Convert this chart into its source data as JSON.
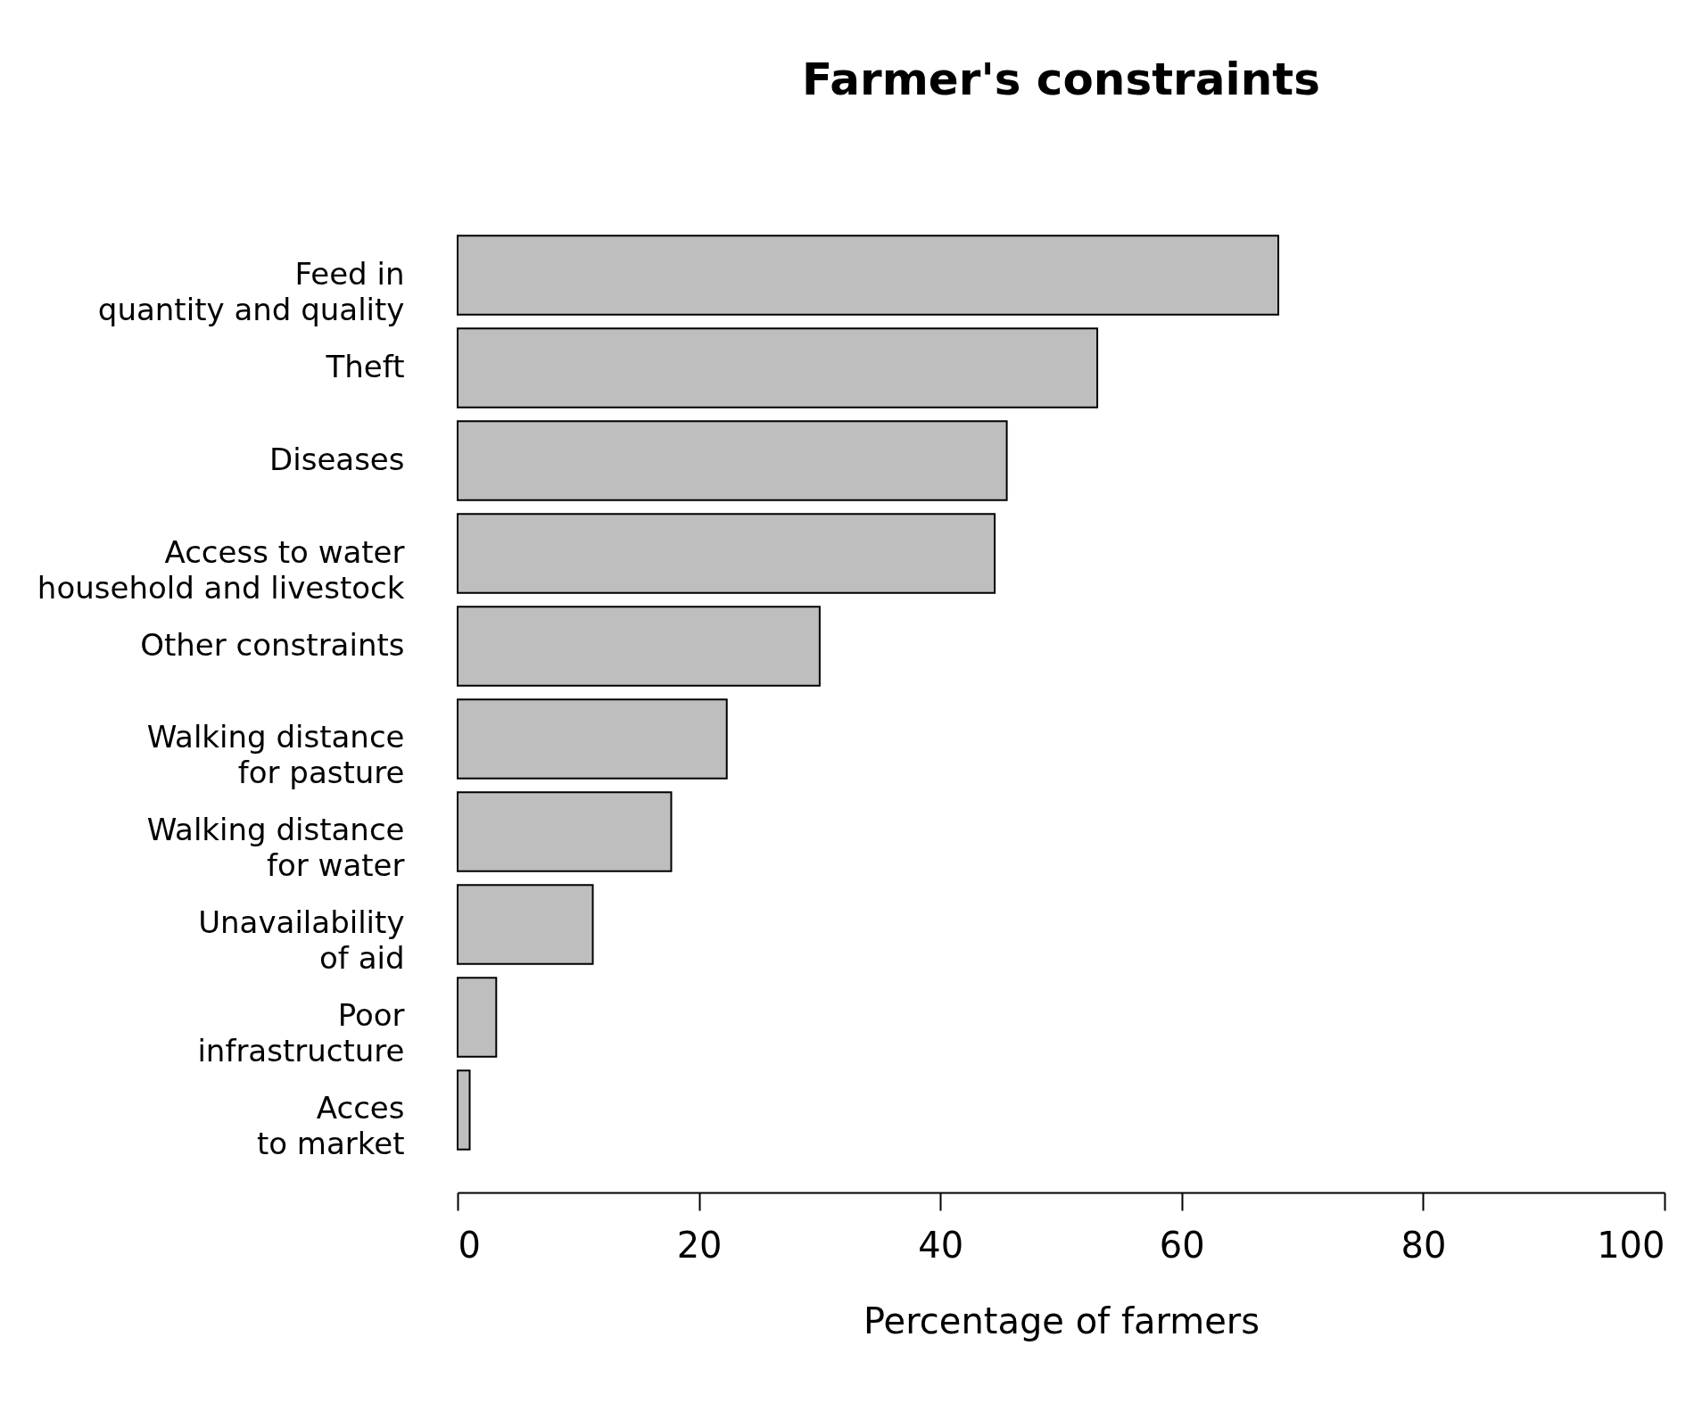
{
  "chart_data": {
    "type": "bar",
    "orientation": "horizontal",
    "title": "Farmer's constraints",
    "xlabel": "Percentage of farmers",
    "categories": [
      "Feed in\nquantity and quality",
      "Theft",
      "Diseases",
      "Access to water\nhousehold and livestock",
      "Other constraints",
      "Walking distance\nfor pasture",
      "Walking distance\nfor water",
      "Unavailability\nof aid",
      "Poor\ninfrastructure",
      "Acces\nto market"
    ],
    "values": [
      68,
      53,
      45.5,
      44.5,
      30,
      22.3,
      17.7,
      11.2,
      3.2,
      1
    ],
    "color": "#bebebe",
    "xlim": [
      0,
      100
    ],
    "xticks": [
      0,
      20,
      40,
      60,
      80,
      100
    ],
    "grid": false
  }
}
